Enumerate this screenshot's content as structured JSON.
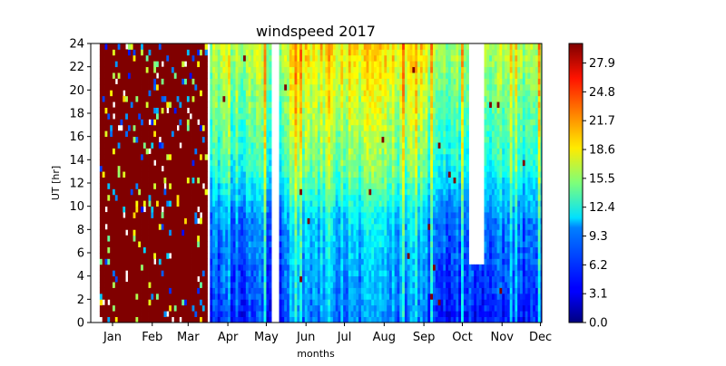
{
  "chart_data": {
    "type": "heatmap",
    "title": "windspeed 2017",
    "xlabel": "months",
    "ylabel": "UT [hr]",
    "x_ticks": [
      "Jan",
      "Feb",
      "Mar",
      "Apr",
      "May",
      "Jun",
      "Jul",
      "Aug",
      "Sep",
      "Oct",
      "Nov",
      "Dec"
    ],
    "x_range_days": [
      -3,
      349
    ],
    "ylim": [
      0,
      24
    ],
    "y_ticks": [
      0,
      2,
      4,
      6,
      8,
      10,
      12,
      14,
      16,
      18,
      20,
      22,
      24
    ],
    "colorbar": {
      "colormap": "jet",
      "range": [
        0.0,
        30.0
      ],
      "tick_labels": [
        "0.0",
        "3.1",
        "6.2",
        "9.3",
        "12.4",
        "15.5",
        "18.6",
        "21.7",
        "24.8",
        "27.9"
      ]
    },
    "data_gaps": [
      {
        "from": "Jan 1",
        "to": "Jan 3",
        "ut_range": [
          0,
          24
        ],
        "note": "no data"
      },
      {
        "from": "Mar 30",
        "to": "Mar 31",
        "ut_range": [
          0,
          24
        ],
        "note": "no data"
      },
      {
        "from": "May 19",
        "to": "May 24",
        "ut_range": [
          0,
          24
        ],
        "note": "no data"
      },
      {
        "from": "Oct 20",
        "to": "Oct 30",
        "ut_range": [
          5,
          24
        ],
        "note": "no data"
      }
    ],
    "saturated_period": {
      "from": "Jan 4",
      "to": "Mar 29",
      "value": ">= 30",
      "note": "mostly saturated (dark red) values"
    },
    "typical_pattern": "Higher wind speeds (about 12–20) during UT 14–24, lower (about 3–8) during UT 0–10"
  }
}
